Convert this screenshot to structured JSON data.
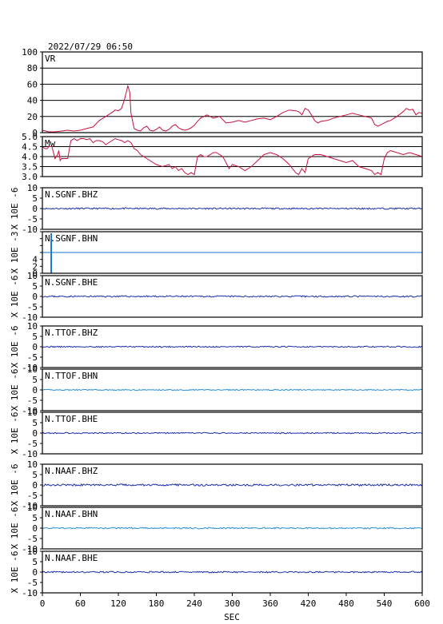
{
  "header": {
    "timestamp": "2022/07/29 06:50"
  },
  "chart_data": [
    {
      "type": "line",
      "panel_label": "VR",
      "ylim": [
        0,
        100
      ],
      "yticks": [
        "100",
        "80",
        "60",
        "40",
        "20",
        "0"
      ],
      "color": "#c8103c",
      "x": [
        0,
        5,
        10,
        20,
        30,
        40,
        50,
        60,
        70,
        80,
        90,
        100,
        110,
        115,
        120,
        125,
        130,
        135,
        138,
        140,
        145,
        150,
        155,
        160,
        165,
        170,
        175,
        180,
        185,
        190,
        195,
        200,
        205,
        210,
        215,
        220,
        225,
        230,
        235,
        240,
        245,
        250,
        255,
        260,
        270,
        280,
        290,
        300,
        310,
        320,
        330,
        340,
        350,
        360,
        370,
        380,
        390,
        400,
        405,
        410,
        415,
        420,
        425,
        430,
        435,
        440,
        450,
        460,
        470,
        480,
        490,
        500,
        510,
        520,
        525,
        530,
        540,
        545,
        550,
        560,
        570,
        575,
        580,
        585,
        590,
        595,
        600
      ],
      "y": [
        3,
        2,
        1,
        1,
        2,
        3,
        2,
        3,
        5,
        7,
        15,
        20,
        25,
        28,
        27,
        30,
        42,
        58,
        50,
        24,
        5,
        3,
        2,
        6,
        8,
        3,
        2,
        4,
        7,
        3,
        2,
        4,
        8,
        10,
        6,
        4,
        3,
        4,
        6,
        9,
        14,
        18,
        20,
        22,
        18,
        20,
        12,
        13,
        15,
        13,
        15,
        17,
        18,
        16,
        20,
        25,
        28,
        27,
        26,
        22,
        30,
        28,
        22,
        15,
        12,
        14,
        15,
        18,
        20,
        22,
        24,
        22,
        20,
        18,
        10,
        8,
        12,
        14,
        15,
        20,
        26,
        30,
        28,
        29,
        22,
        25,
        24
      ]
    },
    {
      "type": "line",
      "panel_label": "Mw",
      "ylim": [
        3.0,
        5.0
      ],
      "yticks": [
        "5.0",
        "4.5",
        "4.0",
        "3.5",
        "3.0"
      ],
      "color": "#c8103c",
      "x": [
        0,
        4,
        8,
        10,
        15,
        20,
        24,
        26,
        28,
        30,
        35,
        40,
        45,
        50,
        55,
        60,
        65,
        70,
        75,
        80,
        85,
        90,
        95,
        100,
        105,
        110,
        115,
        120,
        125,
        130,
        135,
        140,
        145,
        150,
        155,
        160,
        170,
        180,
        190,
        200,
        205,
        210,
        215,
        220,
        225,
        230,
        235,
        240,
        245,
        250,
        255,
        260,
        265,
        270,
        275,
        280,
        285,
        290,
        295,
        300,
        310,
        320,
        330,
        340,
        350,
        360,
        370,
        380,
        390,
        400,
        405,
        410,
        415,
        420,
        425,
        430,
        440,
        450,
        460,
        470,
        480,
        490,
        500,
        510,
        520,
        525,
        530,
        535,
        540,
        545,
        550,
        560,
        570,
        580,
        590,
        600
      ],
      "y": [
        4.5,
        4.4,
        4.4,
        4.5,
        4.5,
        3.9,
        4.1,
        4.3,
        3.8,
        3.9,
        3.9,
        3.9,
        4.8,
        4.9,
        4.8,
        4.9,
        4.9,
        4.85,
        4.9,
        4.7,
        4.8,
        4.8,
        4.75,
        4.6,
        4.7,
        4.8,
        4.9,
        4.85,
        4.8,
        4.7,
        4.8,
        4.7,
        4.4,
        4.3,
        4.1,
        4.0,
        3.8,
        3.6,
        3.5,
        3.6,
        3.4,
        3.5,
        3.3,
        3.4,
        3.2,
        3.1,
        3.2,
        3.1,
        4.0,
        4.1,
        4.0,
        4.0,
        4.1,
        4.2,
        4.2,
        4.1,
        4.0,
        3.7,
        3.4,
        3.6,
        3.5,
        3.3,
        3.5,
        3.8,
        4.1,
        4.2,
        4.1,
        3.9,
        3.6,
        3.2,
        3.1,
        3.4,
        3.2,
        3.9,
        4.0,
        4.1,
        4.1,
        4.0,
        3.9,
        3.8,
        3.7,
        3.8,
        3.5,
        3.4,
        3.3,
        3.1,
        3.2,
        3.1,
        3.9,
        4.2,
        4.3,
        4.2,
        4.1,
        4.2,
        4.1,
        4.0
      ]
    },
    {
      "type": "line",
      "panel_label": "N.SGNF.BHZ",
      "ylim": [
        -10,
        10
      ],
      "yticks": [
        "10",
        "5",
        "0",
        "-5",
        "-10"
      ],
      "unit_label": "X 10E -6",
      "color": "#1a2fa8",
      "amp": 0.35,
      "seed": 11
    },
    {
      "type": "line",
      "panel_label": "N.SGNF.BHN",
      "ylim": [
        -10,
        10
      ],
      "yticks": [
        "",
        "",
        "",
        "",
        "4",
        "2",
        "0"
      ],
      "yticks_pos": [
        null,
        null,
        null,
        null,
        4,
        2,
        0
      ],
      "unit_label": "X 10E -3",
      "color": "#1976d2",
      "amp": 0.0,
      "seed": 0,
      "spike_x": 14
    },
    {
      "type": "line",
      "panel_label": "N.SGNF.BHE",
      "ylim": [
        -10,
        10
      ],
      "yticks": [
        "10",
        "5",
        "0",
        "-5",
        "-10"
      ],
      "unit_label": "X 10E -6",
      "color": "#1a2fa8",
      "amp": 0.35,
      "seed": 23
    },
    {
      "type": "line",
      "panel_label": "N.TTOF.BHZ",
      "ylim": [
        -10,
        10
      ],
      "yticks": [
        "10",
        "5",
        "0",
        "-5",
        "-10"
      ],
      "unit_label": "X 10E -6",
      "color": "#1a2fa8",
      "amp": 0.3,
      "seed": 31
    },
    {
      "type": "line",
      "panel_label": "N.TTOF.BHN",
      "ylim": [
        -10,
        10
      ],
      "yticks": [
        "10",
        "5",
        "0",
        "-5",
        "-10"
      ],
      "unit_label": "X 10E -6",
      "color": "#2b8fd6",
      "amp": 0.25,
      "seed": 41
    },
    {
      "type": "line",
      "panel_label": "N.TTOF.BHE",
      "ylim": [
        -10,
        10
      ],
      "yticks": [
        "10",
        "5",
        "0",
        "-5",
        "-10"
      ],
      "unit_label": "X 10E -6",
      "color": "#1a2fa8",
      "amp": 0.3,
      "seed": 53
    },
    {
      "type": "line",
      "panel_label": "N.NAAF.BHZ",
      "ylim": [
        -10,
        10
      ],
      "yticks": [
        "10",
        "5",
        "0",
        "-5",
        "-10"
      ],
      "unit_label": "X 10E -6",
      "color": "#1a2fa8",
      "amp": 0.45,
      "seed": 61
    },
    {
      "type": "line",
      "panel_label": "N.NAAF.BHN",
      "ylim": [
        -10,
        10
      ],
      "yticks": [
        "10",
        "5",
        "0",
        "-5",
        "-10"
      ],
      "unit_label": "X 10E -6",
      "color": "#2b8fd6",
      "amp": 0.35,
      "seed": 71
    },
    {
      "type": "line",
      "panel_label": "N.NAAF.BHE",
      "ylim": [
        -10,
        10
      ],
      "yticks": [
        "10",
        "5",
        "0",
        "-5",
        "-10"
      ],
      "unit_label": "X 10E -6",
      "color": "#1a2fa8",
      "amp": 0.35,
      "seed": 83
    }
  ],
  "x_axis": {
    "label": "SEC",
    "xlim": [
      0,
      600
    ],
    "ticks": [
      0,
      60,
      120,
      180,
      240,
      300,
      360,
      420,
      480,
      540,
      600
    ],
    "tick_labels": [
      "0",
      "60",
      "120",
      "180",
      "240",
      "300",
      "360",
      "420",
      "480",
      "540",
      "600"
    ]
  }
}
